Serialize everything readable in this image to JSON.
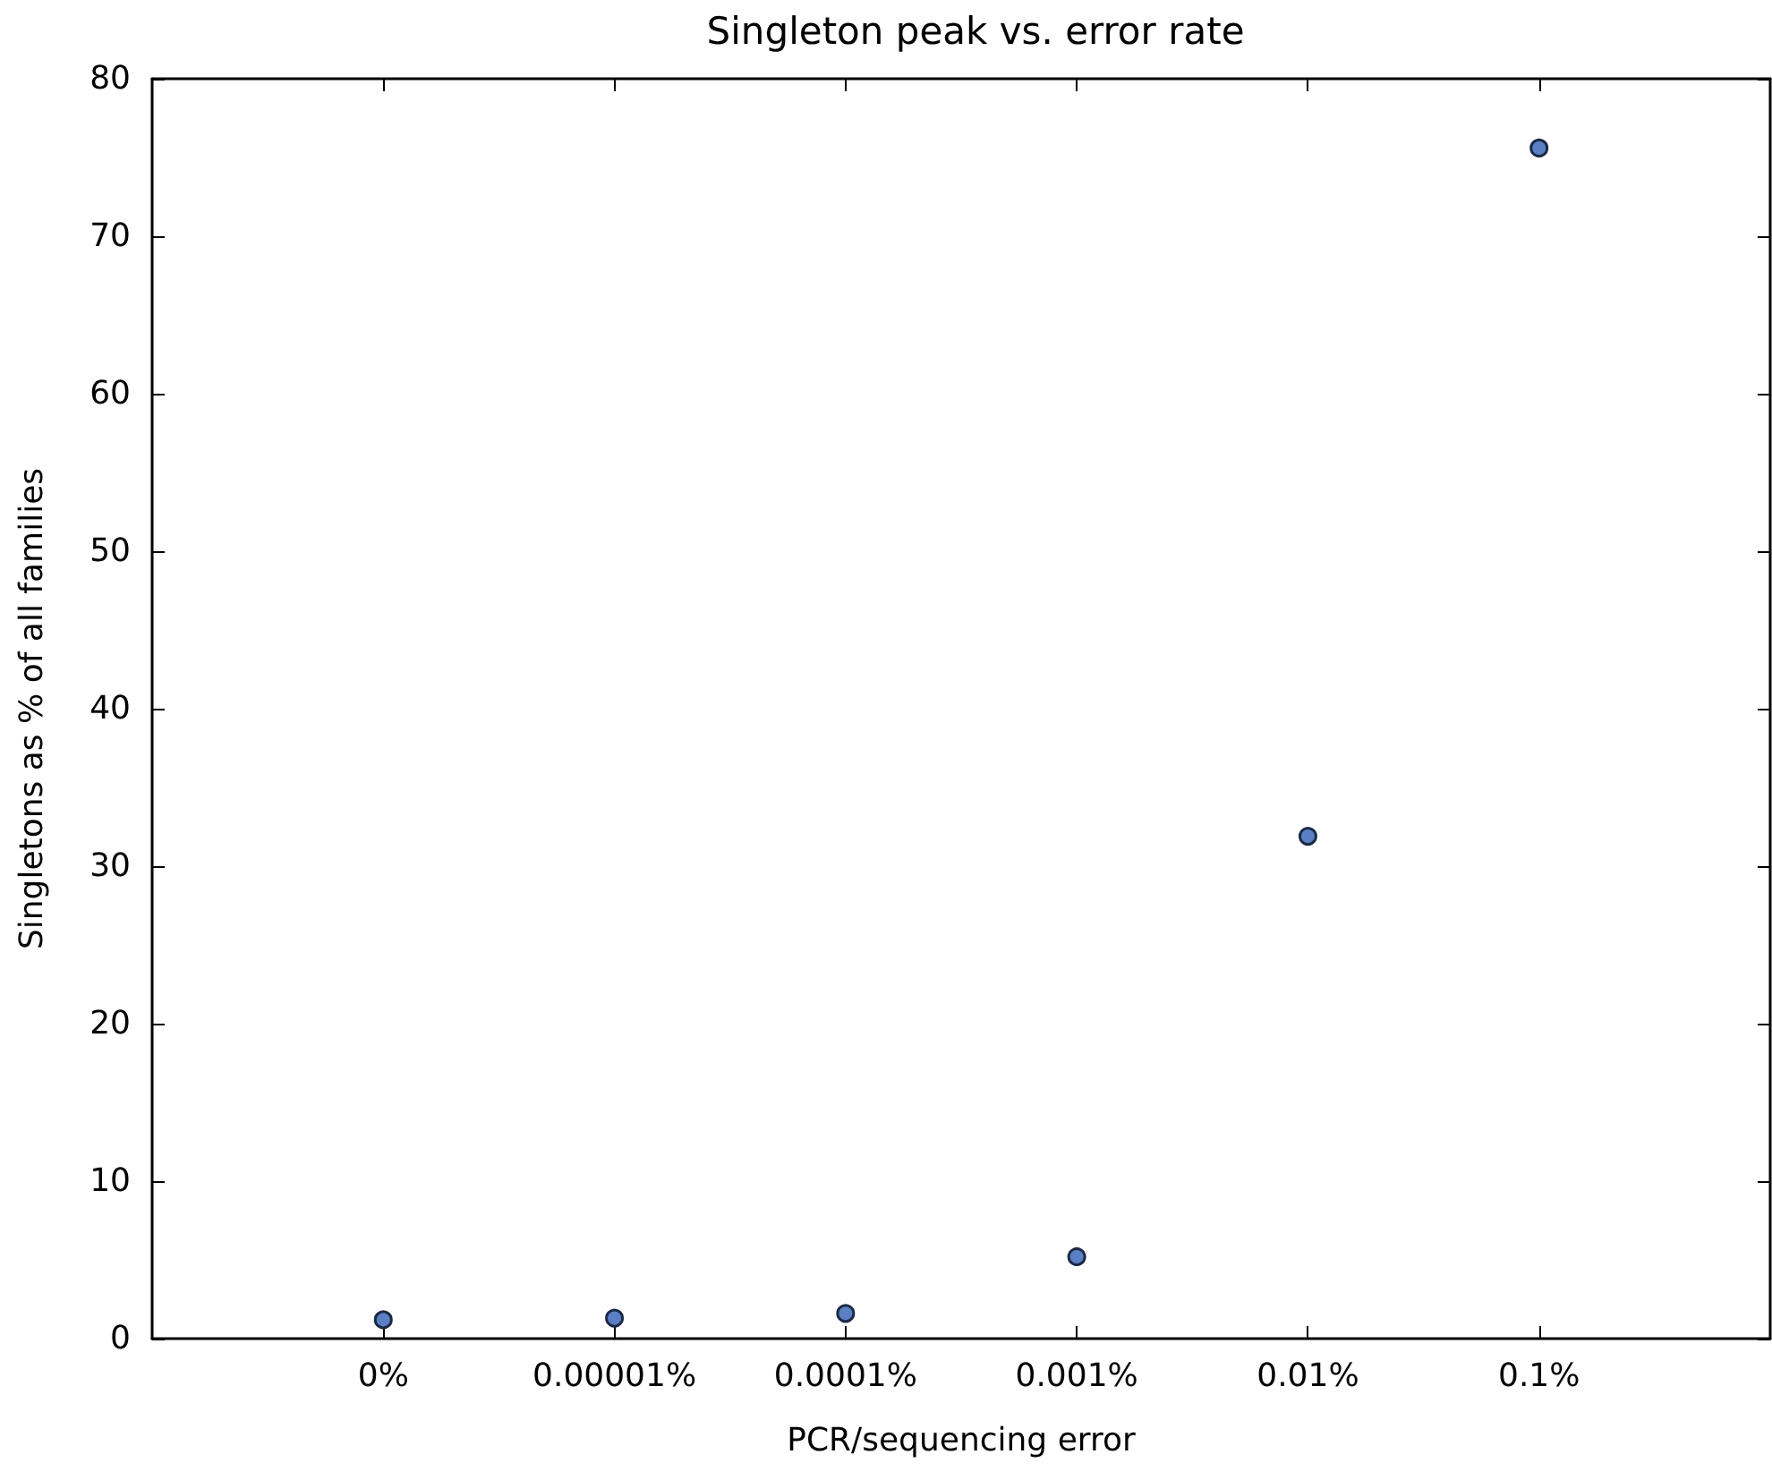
{
  "chart_data": {
    "type": "scatter",
    "title": "Singleton peak vs. error rate",
    "xlabel": "PCR/sequencing error",
    "ylabel": "Singletons as % of all families",
    "categories": [
      "0%",
      "0.00001%",
      "0.0001%",
      "0.001%",
      "0.01%",
      "0.1%"
    ],
    "values": [
      1.2,
      1.3,
      1.6,
      5.2,
      31.9,
      75.6
    ],
    "color": "#5b7fc4",
    "marker": "circle",
    "ylim": [
      0,
      80
    ],
    "yticks": [
      0,
      10,
      20,
      30,
      40,
      50,
      60,
      70,
      80
    ],
    "grid": false
  }
}
